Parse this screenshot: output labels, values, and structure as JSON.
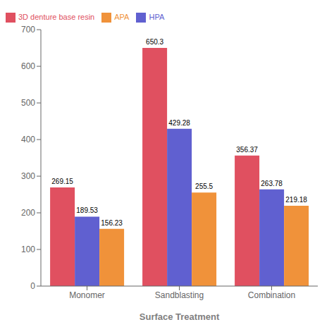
{
  "chart_data": {
    "type": "bar",
    "xlabel": "Surface Treatment",
    "categories": [
      "Monomer",
      "Sandblasting",
      "Combination"
    ],
    "series": [
      {
        "name": "3D denture base resin",
        "color": "#e05060",
        "values": [
          269.15,
          650.3,
          356.37
        ]
      },
      {
        "name": "HPA",
        "color": "#6060d0",
        "values": [
          189.53,
          429.28,
          263.78
        ]
      },
      {
        "name": "APA",
        "color": "#f0923a",
        "values": [
          156.23,
          255.5,
          219.18
        ]
      }
    ],
    "ylim": [
      0,
      700
    ],
    "yticks": [
      0,
      100,
      200,
      300,
      400,
      500,
      600,
      700
    ],
    "grid": false,
    "legend": "upper left",
    "data_labels": true
  }
}
